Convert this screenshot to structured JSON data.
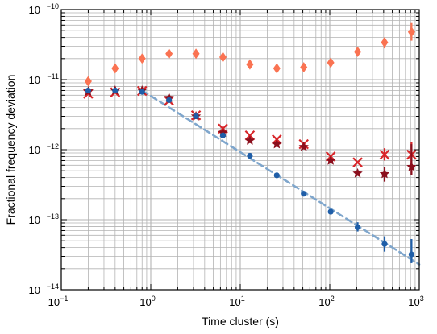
{
  "chart_data": {
    "type": "scatter",
    "title": "",
    "xlabel": "Time cluster (s)",
    "ylabel": "Fractional frequency deviation",
    "xscale": "log",
    "yscale": "log",
    "xlim": [
      0.1,
      1000
    ],
    "ylim": [
      1e-14,
      1e-10
    ],
    "grid": true,
    "legend": "none",
    "x_ticks": [
      {
        "base": "10",
        "exp": "−1",
        "value": 0.1
      },
      {
        "base": "10",
        "exp": "0",
        "value": 1
      },
      {
        "base": "10",
        "exp": "1",
        "value": 10
      },
      {
        "base": "10",
        "exp": "2",
        "value": 100
      },
      {
        "base": "10",
        "exp": "3",
        "value": 1000
      }
    ],
    "y_ticks": [
      {
        "base": "10",
        "exp": "−14",
        "value": 1e-14
      },
      {
        "base": "10",
        "exp": "−13",
        "value": 1e-13
      },
      {
        "base": "10",
        "exp": "−12",
        "value": 1e-12
      },
      {
        "base": "10",
        "exp": "−11",
        "value": 1e-11
      },
      {
        "base": "10",
        "exp": "−10",
        "value": 1e-10
      }
    ],
    "series": [
      {
        "marker": "diamond",
        "color": "#fa7352",
        "points": [
          {
            "x": 0.2,
            "y": 9.5e-12
          },
          {
            "x": 0.4,
            "y": 1.45e-11
          },
          {
            "x": 0.8,
            "y": 2e-11
          },
          {
            "x": 1.6,
            "y": 2.35e-11
          },
          {
            "x": 3.2,
            "y": 2.35e-11
          },
          {
            "x": 6.4,
            "y": 2.1e-11
          },
          {
            "x": 12.8,
            "y": 1.65e-11
          },
          {
            "x": 25.6,
            "y": 1.45e-11
          },
          {
            "x": 51.2,
            "y": 1.5e-11
          },
          {
            "x": 102.4,
            "y": 1.75e-11
          },
          {
            "x": 204.8,
            "y": 2.5e-11
          },
          {
            "x": 409.6,
            "y": 3.4e-11,
            "err": [
              2.8e-11,
              4e-11
            ]
          },
          {
            "x": 819.2,
            "y": 4.8e-11,
            "err": [
              3.6e-11,
              6.6e-11
            ]
          }
        ]
      },
      {
        "marker": "x",
        "color": "#d8262a",
        "points": [
          {
            "x": 0.2,
            "y": 6.3e-12
          },
          {
            "x": 0.4,
            "y": 6.6e-12
          },
          {
            "x": 0.8,
            "y": 6.9e-12
          },
          {
            "x": 1.6,
            "y": 5e-12
          },
          {
            "x": 3.2,
            "y": 3.1e-12
          },
          {
            "x": 6.4,
            "y": 2e-12
          },
          {
            "x": 12.8,
            "y": 1.6e-12
          },
          {
            "x": 25.6,
            "y": 1.4e-12
          },
          {
            "x": 51.2,
            "y": 1.2e-12
          },
          {
            "x": 102.4,
            "y": 8e-13
          },
          {
            "x": 204.8,
            "y": 6.6e-13
          },
          {
            "x": 409.6,
            "y": 8.5e-13,
            "err": [
              7e-13,
              1.05e-12
            ]
          },
          {
            "x": 819.2,
            "y": 8.5e-13,
            "err": [
              6e-13,
              1.3e-12
            ]
          }
        ]
      },
      {
        "marker": "star",
        "color": "#8b0f1d",
        "points": [
          {
            "x": 0.2,
            "y": 6.8e-12
          },
          {
            "x": 0.4,
            "y": 7e-12
          },
          {
            "x": 0.8,
            "y": 7e-12
          },
          {
            "x": 1.6,
            "y": 5.5e-12
          },
          {
            "x": 3.2,
            "y": 3e-12
          },
          {
            "x": 6.4,
            "y": 1.75e-12
          },
          {
            "x": 12.8,
            "y": 1.35e-12
          },
          {
            "x": 25.6,
            "y": 1.2e-12
          },
          {
            "x": 51.2,
            "y": 1.1e-12
          },
          {
            "x": 102.4,
            "y": 7e-13
          },
          {
            "x": 204.8,
            "y": 4.6e-13
          },
          {
            "x": 409.6,
            "y": 4.5e-13,
            "err": [
              3.5e-13,
              5.6e-13
            ]
          },
          {
            "x": 819.2,
            "y": 5.7e-13,
            "err": [
              4.3e-13,
              1.2e-12
            ]
          }
        ]
      },
      {
        "marker": "circle",
        "color": "#1f5ea8",
        "points": [
          {
            "x": 0.2,
            "y": 7e-12
          },
          {
            "x": 0.4,
            "y": 7e-12
          },
          {
            "x": 0.8,
            "y": 6.7e-12
          },
          {
            "x": 1.6,
            "y": 5.1e-12
          },
          {
            "x": 3.2,
            "y": 3e-12
          },
          {
            "x": 6.4,
            "y": 1.6e-12
          },
          {
            "x": 12.8,
            "y": 8.2e-13
          },
          {
            "x": 25.6,
            "y": 4.3e-13
          },
          {
            "x": 51.2,
            "y": 2.35e-13
          },
          {
            "x": 102.4,
            "y": 1.3e-13
          },
          {
            "x": 204.8,
            "y": 7.8e-14,
            "err": [
              6.8e-14,
              9.2e-14
            ]
          },
          {
            "x": 409.6,
            "y": 4.5e-14,
            "err": [
              3.5e-14,
              5.8e-14
            ]
          },
          {
            "x": 819.2,
            "y": 3.2e-14,
            "err": [
              2.4e-14,
              5.3e-14
            ]
          }
        ]
      }
    ],
    "fit_line": {
      "style": "dashed",
      "color": "#7fa6cc",
      "points": [
        {
          "x": 0.8,
          "y": 7e-12
        },
        {
          "x": 1000,
          "y": 2.3e-14
        }
      ]
    }
  }
}
